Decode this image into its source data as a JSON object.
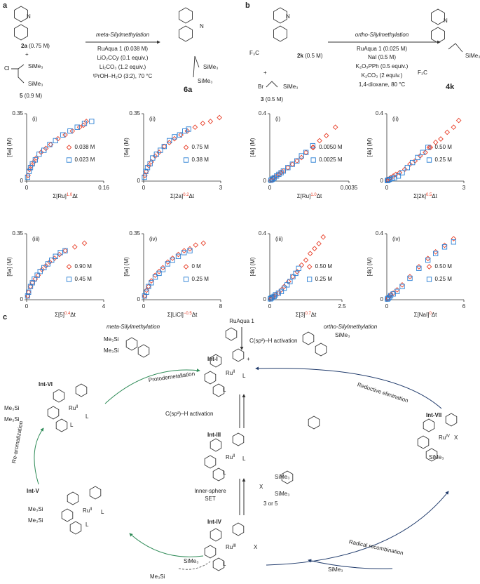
{
  "panel_a": {
    "label": "a",
    "title": "meta-Silylmethylation",
    "reactant_1": "2a",
    "reactant_1_conc": "(0.75 M)",
    "plus": "+",
    "cl": "Cl",
    "reactant_2_groups": [
      "SiMe₃",
      "SiMe₃"
    ],
    "reactant_2": "5",
    "reactant_2_conc": "(0.9 M)",
    "conditions": [
      "RuAqua 1 (0.038 M)",
      "LiO₂CCy (0.1 equiv.)",
      "Li₂CO₃ (1.2 equiv.)",
      "ᵗPrOH–H₂O (3:2), 70 °C"
    ],
    "product": "6a",
    "product_groups": [
      "SiMe₃",
      "SiMe₃"
    ],
    "n_atoms": [
      "N",
      "N"
    ]
  },
  "panel_b": {
    "label": "b",
    "title": "ortho-Silylmethylation",
    "reactant_1": "2k",
    "reactant_1_conc": "(0.5 M)",
    "cf3": "F₃C",
    "plus": "+",
    "br": "Br",
    "reactant_2_group": "SiMe₃",
    "reactant_2": "3",
    "reactant_2_conc": "(0.5 M)",
    "conditions": [
      "RuAqua 1 (0.025 M)",
      "NaI (0.5 M)",
      "K₂O₃PPh (0.5 equiv.)",
      "K₂CO₃ (2 equiv.)",
      "1,4-dioxane, 80 °C"
    ],
    "product": "4k",
    "product_cf3": "F₃C",
    "product_group": "SiMe₃",
    "n_atoms": [
      "N",
      "N"
    ]
  },
  "chart_data": [
    {
      "type": "scatter",
      "panel": "(i)",
      "ylabel": "[6a] (M)",
      "xlabel": [
        "Σ[Ru]",
        "1.0",
        "Δt"
      ],
      "xlim": [
        0,
        0.16
      ],
      "xticks": [
        0,
        0.16
      ],
      "ylim": [
        0,
        0.35
      ],
      "yticks": [
        0,
        0.35
      ],
      "series": [
        {
          "name": "0.038 M",
          "color": "#e8412b",
          "marker": "diamond",
          "x": [
            0.003,
            0.006,
            0.01,
            0.015,
            0.02,
            0.03,
            0.04,
            0.05,
            0.065,
            0.08,
            0.095,
            0.11,
            0.118,
            0.124
          ],
          "values": [
            0.03,
            0.06,
            0.08,
            0.1,
            0.12,
            0.15,
            0.17,
            0.19,
            0.22,
            0.24,
            0.26,
            0.28,
            0.29,
            0.31
          ]
        },
        {
          "name": "0.023 M",
          "color": "#2a7fd4",
          "marker": "square",
          "x": [
            0.002,
            0.005,
            0.008,
            0.012,
            0.018,
            0.026,
            0.036,
            0.048,
            0.06,
            0.075,
            0.09,
            0.105,
            0.12,
            0.135
          ],
          "values": [
            0.02,
            0.05,
            0.07,
            0.09,
            0.11,
            0.14,
            0.16,
            0.19,
            0.21,
            0.24,
            0.26,
            0.28,
            0.3,
            0.31
          ]
        }
      ]
    },
    {
      "type": "scatter",
      "panel": "(ii)",
      "ylabel": "[6a] (M)",
      "xlabel": [
        "Σ[2a]",
        "0.2",
        "Δt"
      ],
      "xlim": [
        0,
        3
      ],
      "xticks": [
        0,
        3
      ],
      "ylim": [
        0,
        0.35
      ],
      "yticks": [
        0,
        0.35
      ],
      "series": [
        {
          "name": "0.75 M",
          "color": "#e8412b",
          "marker": "diamond",
          "x": [
            0.05,
            0.1,
            0.2,
            0.3,
            0.45,
            0.6,
            0.8,
            1.0,
            1.2,
            1.45,
            1.7,
            2.0,
            2.3,
            2.6,
            2.95
          ],
          "values": [
            0.03,
            0.05,
            0.08,
            0.1,
            0.13,
            0.15,
            0.18,
            0.2,
            0.22,
            0.24,
            0.26,
            0.28,
            0.3,
            0.31,
            0.33
          ]
        },
        {
          "name": "0.38 M",
          "color": "#2a7fd4",
          "marker": "square",
          "x": [
            0.03,
            0.08,
            0.15,
            0.25,
            0.35,
            0.5,
            0.65,
            0.8,
            1.0,
            1.2,
            1.4,
            1.6,
            1.75
          ],
          "values": [
            0.02,
            0.05,
            0.07,
            0.09,
            0.12,
            0.14,
            0.16,
            0.18,
            0.21,
            0.23,
            0.24,
            0.26,
            0.27
          ]
        }
      ]
    },
    {
      "type": "scatter",
      "panel": "(iii)",
      "ylabel": "[6a] (M)",
      "xlabel": [
        "Σ[5]",
        "0.4",
        "Δt"
      ],
      "xlim": [
        0,
        4
      ],
      "xticks": [
        0,
        4
      ],
      "ylim": [
        0,
        0.35
      ],
      "yticks": [
        0,
        0.35
      ],
      "series": [
        {
          "name": "0.90 M",
          "color": "#e8412b",
          "marker": "diamond",
          "x": [
            0.05,
            0.1,
            0.2,
            0.3,
            0.45,
            0.6,
            0.8,
            1.0,
            1.2,
            1.45,
            1.7,
            2.0,
            2.5,
            3.0
          ],
          "values": [
            0.02,
            0.04,
            0.07,
            0.09,
            0.11,
            0.13,
            0.16,
            0.18,
            0.2,
            0.22,
            0.24,
            0.26,
            0.28,
            0.3
          ]
        },
        {
          "name": "0.45 M",
          "color": "#2a7fd4",
          "marker": "square",
          "x": [
            0.05,
            0.1,
            0.2,
            0.3,
            0.4,
            0.55,
            0.7,
            0.9,
            1.1,
            1.3,
            1.5,
            1.75,
            2.0
          ],
          "values": [
            0.02,
            0.04,
            0.07,
            0.09,
            0.11,
            0.13,
            0.15,
            0.17,
            0.19,
            0.21,
            0.23,
            0.25,
            0.26
          ]
        }
      ]
    },
    {
      "type": "scatter",
      "panel": "(iv)",
      "ylabel": "[6a] (M)",
      "xlabel": [
        "Σ[LiCl]",
        "−0.5",
        "Δt"
      ],
      "xlim": [
        0,
        8
      ],
      "xticks": [
        0,
        8
      ],
      "ylim": [
        0,
        0.35
      ],
      "yticks": [
        0,
        0.35
      ],
      "series": [
        {
          "name": "0 M",
          "color": "#e8412b",
          "marker": "diamond",
          "x": [
            0.1,
            0.3,
            0.5,
            0.8,
            1.2,
            1.6,
            2.0,
            2.5,
            3.0,
            3.6,
            4.2,
            4.8,
            5.4,
            6.2
          ],
          "values": [
            0.02,
            0.05,
            0.07,
            0.1,
            0.13,
            0.15,
            0.17,
            0.2,
            0.22,
            0.24,
            0.26,
            0.27,
            0.29,
            0.3
          ]
        },
        {
          "name": "0.25 M",
          "color": "#2a7fd4",
          "marker": "square",
          "x": [
            0.1,
            0.3,
            0.5,
            0.8,
            1.2,
            1.6,
            2.0,
            2.5,
            3.0,
            3.6,
            4.2,
            4.8
          ],
          "values": [
            0.02,
            0.04,
            0.07,
            0.09,
            0.12,
            0.14,
            0.16,
            0.19,
            0.21,
            0.23,
            0.25,
            0.26
          ]
        }
      ]
    },
    {
      "type": "scatter",
      "panel": "(i)",
      "ylabel": "[4k] (M)",
      "xlabel": [
        "Σ[Ru]",
        "1.0",
        "Δt"
      ],
      "xlim": [
        0,
        0.0035
      ],
      "xticks": [
        0,
        0.0035
      ],
      "ylim": [
        0,
        0.4
      ],
      "yticks": [
        0,
        0.4
      ],
      "series": [
        {
          "name": "0.0050 M",
          "color": "#e8412b",
          "marker": "diamond",
          "x": [
            5e-05,
            0.0001,
            0.00015,
            0.0002,
            0.0003,
            0.0004,
            0.0005,
            0.0006,
            0.0008,
            0.001,
            0.0012,
            0.0014,
            0.0016,
            0.0019,
            0.0022,
            0.0025,
            0.0029
          ],
          "values": [
            0.005,
            0.01,
            0.015,
            0.02,
            0.03,
            0.04,
            0.05,
            0.06,
            0.08,
            0.1,
            0.12,
            0.14,
            0.17,
            0.2,
            0.24,
            0.27,
            0.32
          ]
        },
        {
          "name": "0.0025 M",
          "color": "#2a7fd4",
          "marker": "square",
          "x": [
            5e-05,
            0.0001,
            0.00015,
            0.0002,
            0.0003,
            0.0004,
            0.0005,
            0.0006,
            0.0008,
            0.001,
            0.0012,
            0.0014,
            0.0016,
            0.0019
          ],
          "values": [
            0.005,
            0.01,
            0.015,
            0.02,
            0.03,
            0.04,
            0.05,
            0.06,
            0.08,
            0.1,
            0.12,
            0.15,
            0.17,
            0.21
          ]
        }
      ]
    },
    {
      "type": "scatter",
      "panel": "(ii)",
      "ylabel": "[4k] (M)",
      "xlabel": [
        "Σ[2k]",
        "0.5",
        "Δt"
      ],
      "xlim": [
        0,
        3
      ],
      "xticks": [
        0,
        3
      ],
      "ylim": [
        0,
        0.4
      ],
      "yticks": [
        0,
        0.4
      ],
      "series": [
        {
          "name": "0.50 M",
          "color": "#e8412b",
          "marker": "diamond",
          "x": [
            0.02,
            0.05,
            0.1,
            0.15,
            0.25,
            0.35,
            0.5,
            0.7,
            0.9,
            1.1,
            1.3,
            1.5,
            1.7,
            1.9,
            2.1,
            2.35,
            2.6,
            2.8
          ],
          "values": [
            0.005,
            0.01,
            0.015,
            0.02,
            0.03,
            0.04,
            0.05,
            0.07,
            0.1,
            0.12,
            0.15,
            0.17,
            0.2,
            0.23,
            0.25,
            0.29,
            0.32,
            0.36
          ]
        },
        {
          "name": "0.25 M",
          "color": "#2a7fd4",
          "marker": "square",
          "x": [
            0.02,
            0.05,
            0.1,
            0.2,
            0.3,
            0.45,
            0.6,
            0.8,
            1.0,
            1.2,
            1.4,
            1.6
          ],
          "values": [
            0.003,
            0.006,
            0.01,
            0.015,
            0.02,
            0.03,
            0.05,
            0.08,
            0.11,
            0.14,
            0.17,
            0.2
          ]
        }
      ]
    },
    {
      "type": "scatter",
      "panel": "(iii)",
      "ylabel": "[4k] (M)",
      "xlabel": [
        "Σ[3]",
        "0.7",
        "Δt"
      ],
      "xlim": [
        0,
        2.5
      ],
      "xticks": [
        0,
        2.5
      ],
      "ylim": [
        0,
        0.4
      ],
      "yticks": [
        0,
        0.4
      ],
      "series": [
        {
          "name": "0.50 M",
          "color": "#e8412b",
          "marker": "diamond",
          "x": [
            0.02,
            0.05,
            0.1,
            0.15,
            0.2,
            0.3,
            0.4,
            0.5,
            0.65,
            0.8,
            0.95,
            1.1,
            1.25,
            1.4,
            1.55,
            1.7,
            1.85
          ],
          "values": [
            0.005,
            0.01,
            0.015,
            0.02,
            0.03,
            0.04,
            0.06,
            0.08,
            0.11,
            0.14,
            0.17,
            0.21,
            0.24,
            0.28,
            0.31,
            0.34,
            0.38
          ]
        },
        {
          "name": "0.25 M",
          "color": "#2a7fd4",
          "marker": "square",
          "x": [
            0.02,
            0.05,
            0.1,
            0.15,
            0.2,
            0.3,
            0.4,
            0.5,
            0.6,
            0.7,
            0.8,
            0.9,
            1.0
          ],
          "values": [
            0.005,
            0.01,
            0.015,
            0.02,
            0.03,
            0.04,
            0.05,
            0.07,
            0.09,
            0.11,
            0.14,
            0.16,
            0.19
          ]
        }
      ]
    },
    {
      "type": "scatter",
      "panel": "(iv)",
      "ylabel": "[4k] (M)",
      "xlabel": [
        "Σ[NaI]",
        "0",
        "Δt"
      ],
      "xlim": [
        0,
        6
      ],
      "xticks": [
        0,
        6
      ],
      "ylim": [
        0,
        0.4
      ],
      "yticks": [
        0,
        0.4
      ],
      "series": [
        {
          "name": "0.50 M",
          "color": "#e8412b",
          "marker": "diamond",
          "x": [
            0.05,
            0.1,
            0.2,
            0.3,
            0.5,
            0.8,
            1.2,
            1.8,
            2.5,
            3.2,
            3.8,
            4.5,
            5.2
          ],
          "values": [
            0.005,
            0.01,
            0.02,
            0.03,
            0.04,
            0.06,
            0.09,
            0.14,
            0.2,
            0.25,
            0.29,
            0.33,
            0.37
          ]
        },
        {
          "name": "0.25 M",
          "color": "#2a7fd4",
          "marker": "square",
          "x": [
            0.05,
            0.1,
            0.2,
            0.3,
            0.5,
            0.8,
            1.2,
            1.8,
            2.5,
            3.2,
            3.8,
            4.5,
            5.2
          ],
          "values": [
            0.004,
            0.008,
            0.015,
            0.025,
            0.035,
            0.05,
            0.08,
            0.13,
            0.19,
            0.24,
            0.28,
            0.32,
            0.35
          ]
        }
      ]
    }
  ],
  "panel_c": {
    "texts": [
      "c",
      "meta-Silylmethylation",
      "ortho-Silylmethylation",
      "RuAqua 1",
      "C(sp²)–H activation",
      "Int-I",
      "Protodemetallation",
      "Reductive elimination",
      "Int-VI",
      "C(sp²)–H activation",
      "Int-III",
      "Int-VII",
      "Inner-sphere",
      "SET",
      "3 or 5",
      "Re-aromatization",
      "Int-V",
      "Int-IV",
      "Radical recombination",
      "SiMe₃",
      "Me₃Si",
      "Me₃Si",
      "Me₃Si",
      "Me₃Si",
      "Me₃Si",
      "Me₃Si",
      "SiMe₃",
      "X",
      "X",
      "X",
      "SiMe₃",
      "SiMe₃",
      "Me₃Si",
      "SiMe₃",
      "SiMe₃",
      "+",
      "L",
      "L",
      "L",
      "L",
      "L",
      "L",
      "L",
      "L",
      "L"
    ],
    "ru_centers": [
      {
        "text": "Ru",
        "sup": "II"
      },
      {
        "text": "Ru",
        "sup": "II"
      },
      {
        "text": "Ru",
        "sup": "II"
      },
      {
        "text": "Ru",
        "sup": "IV"
      },
      {
        "text": "Ru",
        "sup": "II"
      },
      {
        "text": "Ru",
        "sup": "III"
      }
    ]
  }
}
